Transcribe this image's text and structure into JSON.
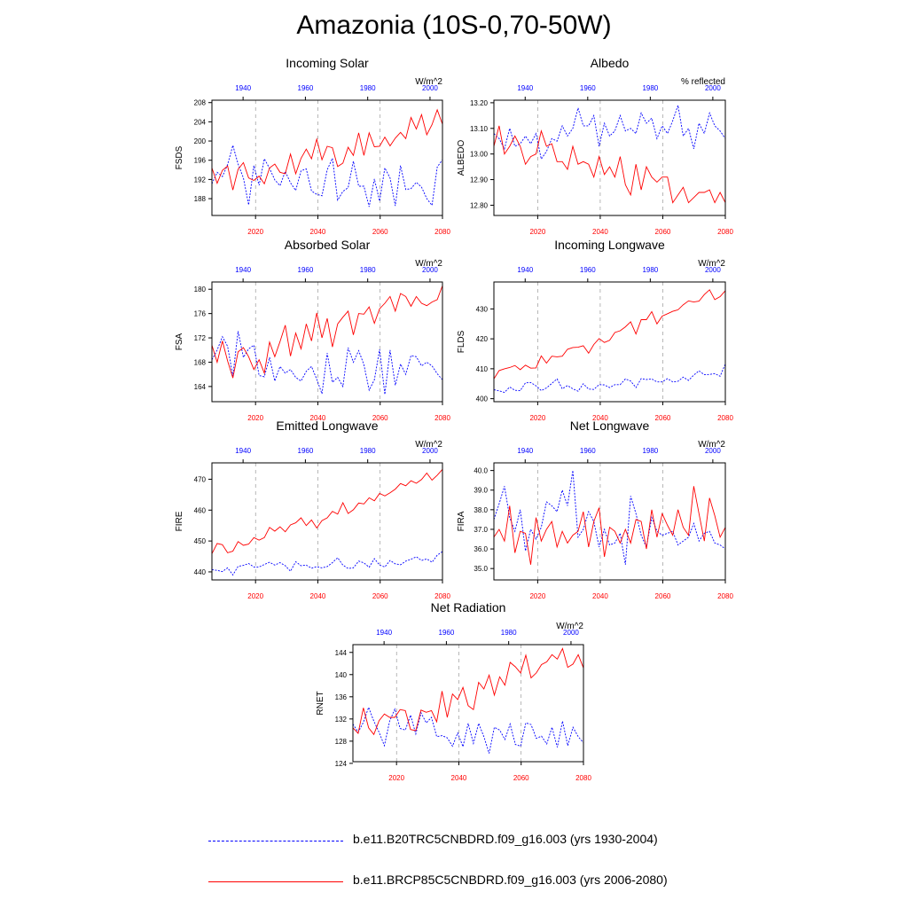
{
  "figure": {
    "title": "Amazonia (10S-0,70-50W)",
    "colors": {
      "historical": "#0000ff",
      "future": "#ff0000",
      "axis": "#000000",
      "refline": "#888888"
    }
  },
  "legend": [
    {
      "series": "historical",
      "label": "b.e11.B20TRC5CNBDRD.f09_g16.003 (yrs 1930-2004)",
      "style": "dashed"
    },
    {
      "series": "future",
      "label": "b.e11.BRCP85C5CNBDRD.f09_g16.003 (yrs 2006-2080)",
      "style": "solid"
    }
  ],
  "chart_data": [
    {
      "type": "line",
      "title": "Incoming Solar",
      "units": "W/m^2",
      "ylabel": "FSDS",
      "ylim": [
        184.5,
        208.5
      ],
      "yticks": [
        188,
        192,
        196,
        200,
        204,
        208
      ],
      "yticklabels": [
        "188",
        "192",
        "196",
        "200",
        "204",
        "208"
      ],
      "x_bottom": {
        "range": [
          2006,
          2080
        ],
        "ticks": [
          2020,
          2040,
          2060,
          2080
        ]
      },
      "x_top": {
        "range": [
          1930,
          2004
        ],
        "ticks": [
          1940,
          1960,
          1980,
          2000
        ]
      },
      "refline_years": [
        2020,
        2040,
        2060
      ],
      "series": [
        {
          "name": "historical",
          "years": "1930-2004",
          "values": [
            191.1,
            193.5,
            192.6,
            195.1,
            199.1,
            195.2,
            192.3,
            186.7,
            194.9,
            190.8,
            196.3,
            194.3,
            191.9,
            190.7,
            193.7,
            191.3,
            189.7,
            193.8,
            194.2,
            189.6,
            188.9,
            188.6,
            194.0,
            196.4,
            187.7,
            189.5,
            190.3,
            195.8,
            190.6,
            190.6,
            186.3,
            192.1,
            187.5,
            194.4,
            192.3,
            186.5,
            194.9,
            189.9,
            190.1,
            191.4,
            190.4,
            188.0,
            186.6,
            194.6,
            196.1
          ]
        },
        {
          "name": "future",
          "years": "2006-2080",
          "values": [
            194.4,
            191.2,
            193.9,
            194.8,
            189.8,
            194.1,
            195.5,
            192.3,
            191.8,
            192.7,
            191.1,
            194.4,
            195.2,
            193.5,
            193.2,
            197.3,
            193.2,
            196.4,
            198.3,
            196.3,
            200.4,
            196.1,
            198.9,
            198.6,
            194.7,
            195.4,
            198.7,
            197.0,
            201.7,
            197.0,
            201.7,
            198.8,
            198.9,
            200.8,
            199.0,
            200.6,
            201.8,
            200.5,
            204.9,
            202.5,
            205.5,
            201.3,
            203.4,
            206.5,
            203.5
          ]
        }
      ]
    },
    {
      "type": "line",
      "title": "Albedo",
      "units": "% reflected",
      "ylabel": "ALBEDO",
      "ylim": [
        12.76,
        13.21
      ],
      "yticks": [
        12.8,
        12.9,
        13.0,
        13.1,
        13.2
      ],
      "yticklabels": [
        "12.80",
        "12.90",
        "13.00",
        "13.10",
        "13.20"
      ],
      "x_bottom": {
        "range": [
          2006,
          2080
        ],
        "ticks": [
          2020,
          2040,
          2060,
          2080
        ]
      },
      "x_top": {
        "range": [
          1930,
          2004
        ],
        "ticks": [
          1940,
          1960,
          1980,
          2000
        ]
      },
      "refline_years": [
        2020,
        2040,
        2060
      ],
      "series": [
        {
          "name": "historical",
          "years": "1930-2004",
          "values": [
            13.08,
            13.06,
            13.02,
            13.1,
            13.03,
            13.04,
            13.07,
            13.04,
            13.08,
            12.98,
            13.01,
            13.06,
            13.05,
            13.11,
            13.07,
            13.1,
            13.18,
            13.11,
            13.11,
            13.15,
            13.03,
            13.12,
            13.07,
            13.09,
            13.15,
            13.09,
            13.1,
            13.08,
            13.16,
            13.12,
            13.14,
            13.06,
            13.11,
            13.08,
            13.13,
            13.19,
            13.07,
            13.1,
            13.02,
            13.12,
            13.08,
            13.16,
            13.11,
            13.09,
            13.06
          ]
        },
        {
          "name": "future",
          "years": "2006-2080",
          "values": [
            13.03,
            13.11,
            13.0,
            13.03,
            13.07,
            13.03,
            12.96,
            12.99,
            13.0,
            13.09,
            13.03,
            13.04,
            12.97,
            12.97,
            12.94,
            13.03,
            12.96,
            12.97,
            12.96,
            12.91,
            12.99,
            12.92,
            12.95,
            12.91,
            12.99,
            12.88,
            12.84,
            12.96,
            12.86,
            12.95,
            12.91,
            12.89,
            12.91,
            12.91,
            12.81,
            12.84,
            12.87,
            12.81,
            12.83,
            12.85,
            12.85,
            12.86,
            12.81,
            12.85,
            12.81
          ]
        }
      ]
    },
    {
      "type": "line",
      "title": "Absorbed Solar",
      "units": "W/m^2",
      "ylabel": "FSA",
      "ylim": [
        161.5,
        181.2
      ],
      "yticks": [
        164,
        168,
        172,
        176,
        180
      ],
      "yticklabels": [
        "164",
        "168",
        "172",
        "176",
        "180"
      ],
      "x_bottom": {
        "range": [
          2006,
          2080
        ],
        "ticks": [
          2020,
          2040,
          2060,
          2080
        ]
      },
      "x_top": {
        "range": [
          1930,
          2004
        ],
        "ticks": [
          1940,
          1960,
          1980,
          2000
        ]
      },
      "refline_years": [
        2020,
        2040,
        2060
      ],
      "series": [
        {
          "name": "historical",
          "years": "1930-2004",
          "values": [
            168.4,
            170.0,
            172.2,
            170.6,
            165.7,
            173.1,
            168.8,
            170.2,
            170.8,
            165.8,
            165.6,
            168.8,
            164.9,
            167.3,
            166.2,
            166.8,
            165.5,
            164.9,
            166.5,
            167.3,
            165.2,
            162.8,
            169.5,
            164.7,
            165.5,
            164.0,
            170.4,
            168.0,
            169.9,
            167.6,
            163.4,
            165.1,
            170.1,
            162.7,
            170.0,
            164.2,
            167.7,
            166.0,
            169.1,
            168.9,
            167.4,
            168.0,
            167.4,
            166.1,
            165.1
          ]
        },
        {
          "name": "future",
          "years": "2006-2080",
          "values": [
            170.8,
            168.0,
            171.5,
            168.2,
            165.4,
            169.7,
            170.4,
            168.9,
            166.8,
            168.4,
            166.2,
            171.3,
            168.9,
            171.4,
            174.1,
            169.0,
            172.8,
            170.2,
            174.3,
            171.5,
            176.1,
            172.0,
            175.2,
            170.5,
            174.3,
            175.4,
            176.4,
            172.5,
            176.0,
            175.9,
            177.1,
            174.4,
            176.8,
            177.7,
            178.8,
            176.4,
            179.3,
            178.8,
            177.2,
            178.8,
            177.7,
            177.3,
            177.9,
            178.3,
            180.6
          ]
        }
      ]
    },
    {
      "type": "line",
      "title": "Incoming Longwave",
      "units": "W/m^2",
      "ylabel": "FLDS",
      "ylim": [
        399,
        439
      ],
      "yticks": [
        400,
        410,
        420,
        430
      ],
      "yticklabels": [
        "400",
        "410",
        "420",
        "430"
      ],
      "x_bottom": {
        "range": [
          2006,
          2080
        ],
        "ticks": [
          2020,
          2040,
          2060,
          2080
        ]
      },
      "x_top": {
        "range": [
          1930,
          2004
        ],
        "ticks": [
          1940,
          1960,
          1980,
          2000
        ]
      },
      "refline_years": [
        2020,
        2040,
        2060
      ],
      "series": [
        {
          "name": "historical",
          "years": "1930-2004",
          "values": [
            403.0,
            402.6,
            402.1,
            403.9,
            402.8,
            402.7,
            405.3,
            405.4,
            404.3,
            402.7,
            403.6,
            405.1,
            406.6,
            403.3,
            404.4,
            403.3,
            402.5,
            405.0,
            403.2,
            403.1,
            404.7,
            404.6,
            403.7,
            404.7,
            404.7,
            406.6,
            405.9,
            403.7,
            406.7,
            406.4,
            406.6,
            405.6,
            405.6,
            406.7,
            405.6,
            405.8,
            407.2,
            406.1,
            407.9,
            409.3,
            408.0,
            408.1,
            408.4,
            407.5,
            411.6
          ]
        },
        {
          "name": "future",
          "years": "2006-2080",
          "values": [
            406.6,
            409.4,
            410.0,
            410.4,
            411.1,
            409.7,
            411.2,
            410.2,
            410.3,
            414.3,
            411.9,
            414.2,
            414.0,
            414.2,
            416.5,
            417.1,
            417.2,
            417.7,
            415.2,
            418.1,
            420.1,
            418.8,
            419.5,
            422.1,
            422.7,
            424.0,
            425.7,
            421.6,
            426.4,
            426.4,
            429.1,
            425.0,
            427.6,
            428.4,
            429.2,
            429.7,
            431.4,
            432.7,
            432.3,
            432.6,
            434.8,
            436.4,
            433.1,
            434.1,
            436.1
          ]
        }
      ]
    },
    {
      "type": "line",
      "title": "Emitted Longwave",
      "units": "W/m^2",
      "ylabel": "FIRE",
      "ylim": [
        437.4,
        475.3
      ],
      "yticks": [
        440,
        450,
        460,
        470
      ],
      "yticklabels": [
        "440",
        "450",
        "460",
        "470"
      ],
      "x_bottom": {
        "range": [
          2006,
          2080
        ],
        "ticks": [
          2020,
          2040,
          2060,
          2080
        ]
      },
      "x_top": {
        "range": [
          1930,
          2004
        ],
        "ticks": [
          1940,
          1960,
          1980,
          2000
        ]
      },
      "refline_years": [
        2020,
        2040,
        2060
      ],
      "series": [
        {
          "name": "historical",
          "years": "1930-2004",
          "values": [
            440.7,
            440.5,
            440.1,
            441.3,
            439.0,
            441.8,
            442.1,
            442.7,
            441.6,
            441.6,
            442.4,
            443.1,
            442.2,
            443.0,
            442.0,
            440.2,
            443.3,
            442.0,
            442.2,
            441.2,
            441.7,
            441.3,
            441.7,
            443.0,
            444.6,
            442.2,
            441.1,
            441.3,
            443.5,
            442.9,
            441.5,
            444.3,
            442.2,
            441.6,
            443.7,
            442.6,
            442.3,
            443.5,
            444.1,
            444.9,
            443.7,
            444.2,
            443.1,
            445.4,
            446.6
          ]
        },
        {
          "name": "future",
          "years": "2006-2080",
          "values": [
            445.9,
            449.2,
            448.8,
            446.2,
            446.7,
            449.8,
            448.6,
            449.0,
            451.1,
            450.3,
            451.1,
            454.4,
            453.2,
            454.6,
            453.0,
            455.2,
            455.9,
            457.5,
            455.0,
            456.8,
            454.2,
            456.6,
            457.5,
            459.6,
            458.7,
            462.4,
            458.9,
            460.1,
            462.3,
            462.0,
            464.0,
            463.0,
            465.4,
            464.6,
            465.6,
            466.8,
            468.6,
            467.9,
            469.5,
            468.7,
            469.9,
            472.0,
            469.7,
            471.3,
            473.2
          ]
        }
      ]
    },
    {
      "type": "line",
      "title": "Net Longwave",
      "units": "W/m^2",
      "ylabel": "FIRA",
      "ylim": [
        34.42,
        40.39
      ],
      "yticks": [
        35.0,
        36.0,
        37.0,
        38.0,
        39.0,
        40.0
      ],
      "yticklabels": [
        "35.0",
        "36.0",
        "37.0",
        "38.0",
        "39.0",
        "40.0"
      ],
      "x_bottom": {
        "range": [
          2006,
          2080
        ],
        "ticks": [
          2020,
          2040,
          2060,
          2080
        ]
      },
      "x_top": {
        "range": [
          1930,
          2004
        ],
        "ticks": [
          1940,
          1960,
          1980,
          2000
        ]
      },
      "refline_years": [
        2020,
        2040,
        2060
      ],
      "series": [
        {
          "name": "historical",
          "years": "1930-2004",
          "values": [
            37.5,
            38.3,
            39.2,
            37.6,
            36.9,
            38.0,
            35.9,
            37.0,
            36.5,
            37.1,
            38.4,
            38.2,
            37.9,
            39.0,
            38.2,
            40.0,
            36.6,
            37.0,
            37.9,
            37.4,
            36.1,
            37.0,
            36.2,
            36.3,
            36.8,
            35.2,
            38.7,
            37.8,
            36.7,
            36.1,
            37.6,
            36.9,
            36.7,
            36.8,
            36.9,
            36.2,
            36.4,
            36.6,
            37.3,
            36.4,
            36.8,
            36.9,
            36.3,
            36.2,
            36.0
          ]
        },
        {
          "name": "future",
          "years": "2006-2080",
          "values": [
            36.6,
            37.0,
            36.4,
            38.2,
            35.8,
            36.9,
            36.8,
            35.2,
            37.6,
            36.4,
            37.0,
            37.4,
            36.1,
            36.9,
            36.3,
            36.7,
            36.9,
            37.9,
            36.1,
            37.4,
            38.1,
            35.6,
            37.1,
            36.9,
            36.3,
            37.0,
            36.3,
            37.5,
            37.4,
            36.0,
            38.0,
            36.6,
            37.8,
            37.2,
            36.7,
            38.0,
            37.1,
            36.7,
            39.2,
            37.8,
            36.4,
            38.6,
            37.7,
            36.6,
            37.1
          ]
        }
      ]
    },
    {
      "type": "line",
      "title": "Net Radiation",
      "units": "W/m^2",
      "ylabel": "RNET",
      "ylim": [
        124.3,
        145.4
      ],
      "yticks": [
        124,
        128,
        132,
        136,
        140,
        144
      ],
      "yticklabels": [
        "124",
        "128",
        "132",
        "136",
        "140",
        "144"
      ],
      "x_bottom": {
        "range": [
          2006,
          2080
        ],
        "ticks": [
          2020,
          2040,
          2060,
          2080
        ]
      },
      "x_top": {
        "range": [
          1930,
          2004
        ],
        "ticks": [
          1940,
          1960,
          1980,
          2000
        ]
      },
      "refline_years": [
        2020,
        2040,
        2060
      ],
      "series": [
        {
          "name": "historical",
          "years": "1930-2004",
          "values": [
            131.1,
            129.6,
            131.4,
            134.1,
            131.6,
            129.6,
            127.2,
            131.6,
            133.8,
            130.3,
            130.0,
            132.7,
            129.3,
            133.1,
            131.3,
            132.3,
            128.8,
            129.0,
            128.6,
            127.1,
            129.5,
            127.0,
            131.2,
            127.6,
            131.2,
            128.8,
            125.8,
            130.5,
            130.0,
            128.3,
            131.1,
            127.4,
            127.1,
            131.3,
            131.0,
            128.5,
            128.9,
            127.5,
            130.5,
            126.9,
            131.6,
            127.2,
            130.5,
            128.8,
            127.7
          ]
        },
        {
          "name": "future",
          "years": "2006-2080",
          "values": [
            130.4,
            129.4,
            134.0,
            130.4,
            129.2,
            131.7,
            132.9,
            132.3,
            132.3,
            133.7,
            133.5,
            130.1,
            129.9,
            133.6,
            133.2,
            133.5,
            131.5,
            137.0,
            132.3,
            136.5,
            135.5,
            137.7,
            134.4,
            133.7,
            138.6,
            137.4,
            139.9,
            136.3,
            139.6,
            138.1,
            142.2,
            141.4,
            140.3,
            143.5,
            139.4,
            140.3,
            141.8,
            142.3,
            143.6,
            142.8,
            144.7,
            141.3,
            141.9,
            143.6,
            141.2
          ]
        }
      ]
    }
  ]
}
